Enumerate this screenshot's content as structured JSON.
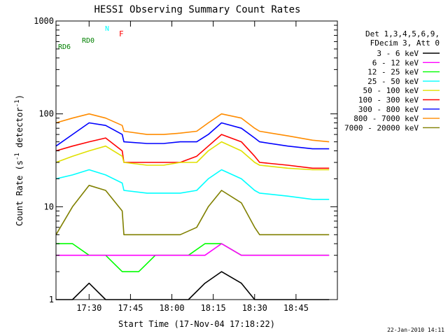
{
  "chart_data": {
    "type": "line",
    "title": "HESSI Observing Summary Count Rates",
    "xlabel": "Start Time (17-Nov-04 17:18:22)",
    "ylabel_main": "Count Rate (s",
    "ylabel_sup1": "-1",
    "ylabel_mid": " detector",
    "ylabel_sup2": "-1",
    "ylabel_end": ")",
    "y_scale": "log",
    "ylim": [
      1,
      1000
    ],
    "xlim_minutes": [
      17.3,
      19.0
    ],
    "x_ticks": [
      {
        "label": "17:30",
        "value": 17.5
      },
      {
        "label": "17:45",
        "value": 17.75
      },
      {
        "label": "18:00",
        "value": 18.0
      },
      {
        "label": "18:15",
        "value": 18.25
      },
      {
        "label": "18:30",
        "value": 18.5
      },
      {
        "label": "18:45",
        "value": 18.75
      }
    ],
    "y_ticks": [
      {
        "label": "1",
        "value": 1
      },
      {
        "label": "10",
        "value": 10
      },
      {
        "label": "100",
        "value": 100
      },
      {
        "label": "1000",
        "value": 1000
      }
    ],
    "legend_header": [
      "Det 1,3,4,5,6,9,",
      "FDecim 3, Att 0"
    ],
    "legend": [
      {
        "label": "3 - 6 keV",
        "color": "#000000"
      },
      {
        "label": "6 - 12 keV",
        "color": "#ff00ff"
      },
      {
        "label": "12 - 25 keV",
        "color": "#00ff00"
      },
      {
        "label": "25 - 50 keV",
        "color": "#00ffff"
      },
      {
        "label": "50 - 100 keV",
        "color": "#e0e000"
      },
      {
        "label": "100 - 300 keV",
        "color": "#ff0000"
      },
      {
        "label": "300 - 800 keV",
        "color": "#0000ff"
      },
      {
        "label": "800 - 7000 keV",
        "color": "#ff8c00"
      },
      {
        "label": "7000 - 20000 keV",
        "color": "#808000"
      }
    ],
    "flag_labels": {
      "night": "N",
      "flare": "F",
      "rd0": "RD0",
      "rd6": "RD6"
    },
    "series": [
      {
        "name": "800 - 7000 keV",
        "color": "#ff8c00",
        "points": [
          [
            17.3,
            80
          ],
          [
            17.4,
            90
          ],
          [
            17.5,
            100
          ],
          [
            17.6,
            90
          ],
          [
            17.7,
            75
          ],
          [
            17.71,
            65
          ],
          [
            17.85,
            60
          ],
          [
            17.95,
            60
          ],
          [
            18.05,
            62
          ],
          [
            18.15,
            65
          ],
          [
            18.22,
            80
          ],
          [
            18.3,
            100
          ],
          [
            18.42,
            90
          ],
          [
            18.5,
            70
          ],
          [
            18.53,
            65
          ],
          [
            18.7,
            58
          ],
          [
            18.85,
            52
          ],
          [
            18.95,
            50
          ]
        ]
      },
      {
        "name": "300 - 800 keV",
        "color": "#0000ff",
        "points": [
          [
            17.3,
            45
          ],
          [
            17.4,
            60
          ],
          [
            17.5,
            80
          ],
          [
            17.6,
            75
          ],
          [
            17.7,
            60
          ],
          [
            17.71,
            50
          ],
          [
            17.85,
            48
          ],
          [
            17.95,
            48
          ],
          [
            18.05,
            50
          ],
          [
            18.15,
            50
          ],
          [
            18.22,
            60
          ],
          [
            18.3,
            80
          ],
          [
            18.42,
            70
          ],
          [
            18.5,
            55
          ],
          [
            18.53,
            50
          ],
          [
            18.7,
            45
          ],
          [
            18.85,
            42
          ],
          [
            18.95,
            42
          ]
        ]
      },
      {
        "name": "100 - 300 keV",
        "color": "#ff0000",
        "points": [
          [
            17.3,
            40
          ],
          [
            17.4,
            45
          ],
          [
            17.5,
            50
          ],
          [
            17.6,
            55
          ],
          [
            17.7,
            40
          ],
          [
            17.71,
            30
          ],
          [
            17.85,
            30
          ],
          [
            17.95,
            30
          ],
          [
            18.05,
            30
          ],
          [
            18.15,
            35
          ],
          [
            18.22,
            45
          ],
          [
            18.3,
            60
          ],
          [
            18.42,
            50
          ],
          [
            18.5,
            35
          ],
          [
            18.53,
            30
          ],
          [
            18.7,
            28
          ],
          [
            18.85,
            26
          ],
          [
            18.95,
            26
          ]
        ]
      },
      {
        "name": "50 - 100 keV",
        "color": "#e0e000",
        "points": [
          [
            17.3,
            30
          ],
          [
            17.4,
            35
          ],
          [
            17.5,
            40
          ],
          [
            17.6,
            45
          ],
          [
            17.7,
            35
          ],
          [
            17.71,
            30
          ],
          [
            17.85,
            28
          ],
          [
            17.95,
            28
          ],
          [
            18.05,
            30
          ],
          [
            18.15,
            30
          ],
          [
            18.22,
            40
          ],
          [
            18.3,
            50
          ],
          [
            18.42,
            40
          ],
          [
            18.5,
            30
          ],
          [
            18.53,
            28
          ],
          [
            18.7,
            26
          ],
          [
            18.85,
            25
          ],
          [
            18.95,
            25
          ]
        ]
      },
      {
        "name": "25 - 50 keV",
        "color": "#00ffff",
        "points": [
          [
            17.3,
            20
          ],
          [
            17.4,
            22
          ],
          [
            17.5,
            25
          ],
          [
            17.6,
            22
          ],
          [
            17.7,
            18
          ],
          [
            17.71,
            15
          ],
          [
            17.85,
            14
          ],
          [
            17.95,
            14
          ],
          [
            18.05,
            14
          ],
          [
            18.15,
            15
          ],
          [
            18.22,
            20
          ],
          [
            18.3,
            25
          ],
          [
            18.42,
            20
          ],
          [
            18.5,
            15
          ],
          [
            18.53,
            14
          ],
          [
            18.7,
            13
          ],
          [
            18.85,
            12
          ],
          [
            18.95,
            12
          ]
        ]
      },
      {
        "name": "7000 - 20000 keV",
        "color": "#808000",
        "points": [
          [
            17.3,
            5
          ],
          [
            17.4,
            10
          ],
          [
            17.5,
            17
          ],
          [
            17.6,
            15
          ],
          [
            17.7,
            9
          ],
          [
            17.71,
            5
          ],
          [
            17.85,
            5
          ],
          [
            17.95,
            5
          ],
          [
            18.05,
            5
          ],
          [
            18.15,
            6
          ],
          [
            18.22,
            10
          ],
          [
            18.3,
            15
          ],
          [
            18.42,
            11
          ],
          [
            18.5,
            6
          ],
          [
            18.53,
            5
          ],
          [
            18.7,
            5
          ],
          [
            18.85,
            5
          ],
          [
            18.95,
            5
          ]
        ]
      },
      {
        "name": "12 - 25 keV",
        "color": "#00ff00",
        "points": [
          [
            17.3,
            4
          ],
          [
            17.4,
            4
          ],
          [
            17.5,
            3
          ],
          [
            17.6,
            3
          ],
          [
            17.7,
            2
          ],
          [
            17.8,
            2
          ],
          [
            17.9,
            3
          ],
          [
            18.0,
            3
          ],
          [
            18.1,
            3
          ],
          [
            18.2,
            4
          ],
          [
            18.3,
            4
          ],
          [
            18.42,
            3
          ],
          [
            18.5,
            3
          ],
          [
            18.6,
            3
          ],
          [
            18.7,
            3
          ],
          [
            18.85,
            3
          ],
          [
            18.95,
            3
          ]
        ]
      },
      {
        "name": "6 - 12 keV",
        "color": "#ff00ff",
        "points": [
          [
            17.3,
            3
          ],
          [
            17.4,
            3
          ],
          [
            17.5,
            3
          ],
          [
            17.6,
            3
          ],
          [
            17.7,
            3
          ],
          [
            17.8,
            3
          ],
          [
            17.9,
            3
          ],
          [
            18.0,
            3
          ],
          [
            18.1,
            3
          ],
          [
            18.2,
            3
          ],
          [
            18.3,
            4
          ],
          [
            18.42,
            3
          ],
          [
            18.5,
            3
          ],
          [
            18.6,
            3
          ],
          [
            18.7,
            3
          ],
          [
            18.85,
            3
          ],
          [
            18.95,
            3
          ]
        ]
      },
      {
        "name": "3 - 6 keV",
        "color": "#000000",
        "points": [
          [
            17.3,
            1
          ],
          [
            17.4,
            1
          ],
          [
            17.5,
            1.5
          ],
          [
            17.6,
            1
          ],
          [
            17.7,
            1
          ],
          [
            17.8,
            1
          ],
          [
            17.9,
            1
          ],
          [
            18.0,
            1
          ],
          [
            18.1,
            1
          ],
          [
            18.2,
            1.5
          ],
          [
            18.3,
            2
          ],
          [
            18.42,
            1.5
          ],
          [
            18.5,
            1
          ],
          [
            18.6,
            1
          ],
          [
            18.7,
            1
          ],
          [
            18.85,
            1
          ],
          [
            18.95,
            1
          ]
        ]
      }
    ]
  },
  "footer": {
    "timestamp": "22-Jan-2010 14:11"
  }
}
